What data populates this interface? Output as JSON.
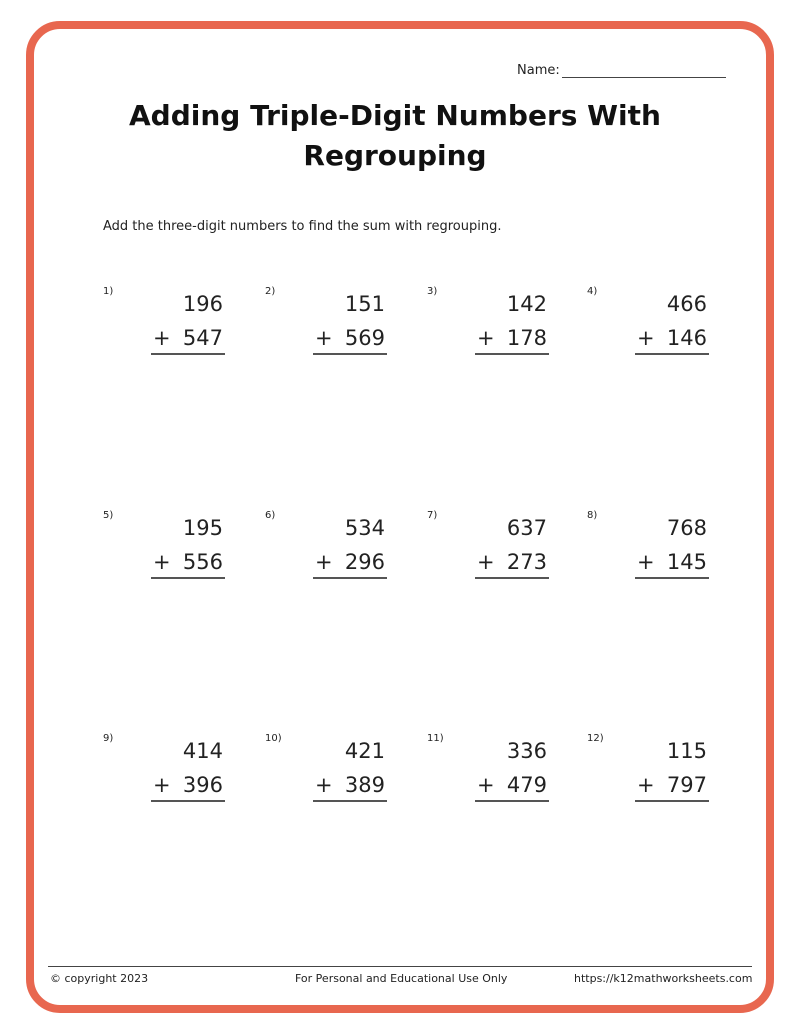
{
  "header": {
    "name_label": "Name:",
    "title": "Adding Triple-Digit Numbers With Regrouping"
  },
  "instructions": "Add the three-digit numbers to find the sum with regrouping.",
  "problems": [
    {
      "label": "1)",
      "top": "196",
      "bottom": "547"
    },
    {
      "label": "2)",
      "top": "151",
      "bottom": "569"
    },
    {
      "label": "3)",
      "top": "142",
      "bottom": "178"
    },
    {
      "label": "4)",
      "top": "466",
      "bottom": "146"
    },
    {
      "label": "5)",
      "top": "195",
      "bottom": "556"
    },
    {
      "label": "6)",
      "top": "534",
      "bottom": "296"
    },
    {
      "label": "7)",
      "top": "637",
      "bottom": "273"
    },
    {
      "label": "8)",
      "top": "768",
      "bottom": "145"
    },
    {
      "label": "9)",
      "top": "414",
      "bottom": "396"
    },
    {
      "label": "10)",
      "top": "421",
      "bottom": "389"
    },
    {
      "label": "11)",
      "top": "336",
      "bottom": "479"
    },
    {
      "label": "12)",
      "top": "115",
      "bottom": "797"
    }
  ],
  "operator": "+",
  "footer": {
    "copyright": "© copyright 2023",
    "usage": "For Personal and Educational Use Only",
    "url": "https://k12mathworksheets.com"
  },
  "colors": {
    "border": "#e8674f"
  }
}
